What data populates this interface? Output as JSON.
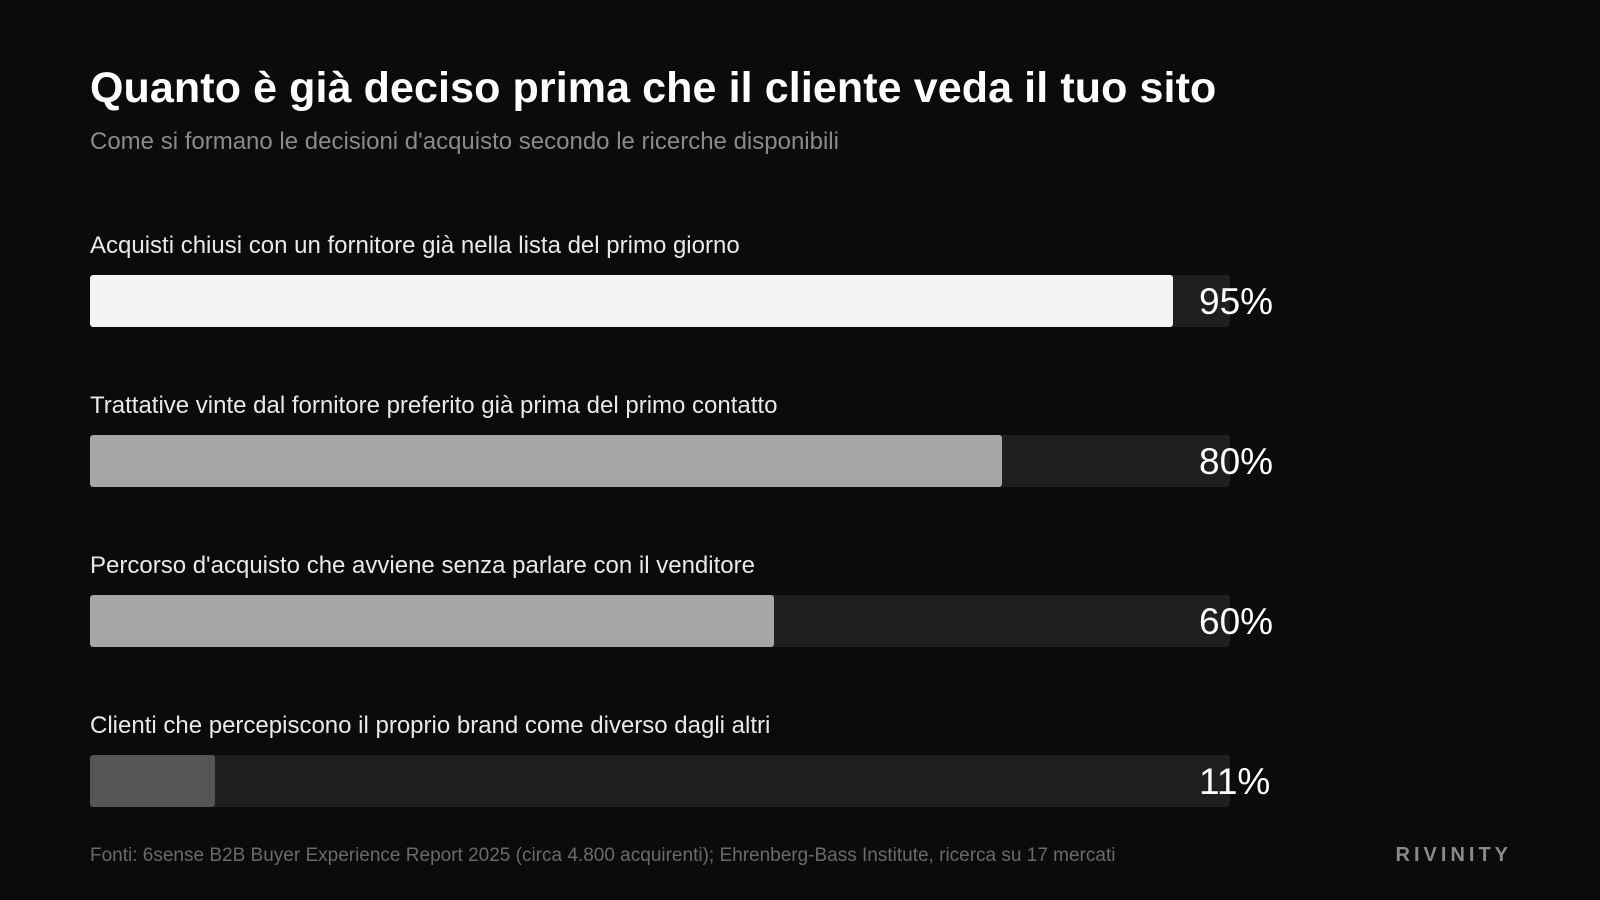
{
  "title": "Quanto è già deciso prima che il cliente veda il tuo sito",
  "subtitle": "Come si formano le decisioni d'acquisto secondo le ricerche disponibili",
  "chart_data": {
    "type": "bar",
    "orientation": "horizontal",
    "categories": [
      "Acquisti chiusi con un fornitore già nella lista del primo giorno",
      "Trattative vinte dal fornitore preferito già prima del primo contatto",
      "Percorso d'acquisto che avviene senza parlare con il venditore",
      "Clienti che percepiscono il proprio brand come diverso dagli altri"
    ],
    "values": [
      95,
      80,
      60,
      11
    ],
    "value_labels": [
      "95%",
      "80%",
      "60%",
      "11%"
    ],
    "xlim": [
      0,
      100
    ],
    "bar_colors": [
      "#f4f4f4",
      "#a6a6a6",
      "#a6a6a6",
      "#555555"
    ],
    "track_color": "#1f1f1f",
    "grid": false,
    "legend": "none"
  },
  "footer": {
    "sources": "Fonti: 6sense B2B Buyer Experience Report 2025 (circa 4.800 acquirenti); Ehrenberg-Bass Institute, ricerca su 17 mercati",
    "brand": "RIVINITY"
  }
}
